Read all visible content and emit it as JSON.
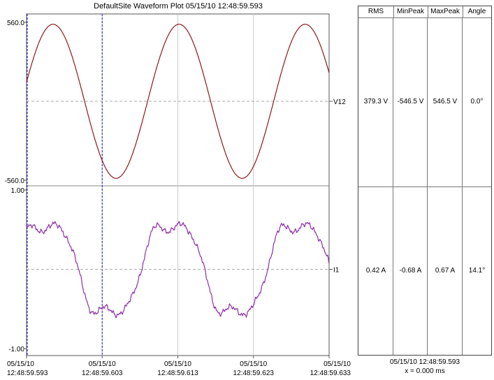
{
  "title": "DefaultSite  Waveform Plot  05/15/10  12:48:59.593",
  "chart_data": [
    {
      "type": "line",
      "series": [
        {
          "name": "V12",
          "amplitude": 546.5,
          "rms": 379.3,
          "frequency_hz": 60,
          "phase_deg": 0.0
        }
      ],
      "x": {
        "unit": "ms",
        "range": [
          0,
          40
        ]
      },
      "ylim": [
        -560.0,
        560.0
      ],
      "y_tick_labels": [
        "560.0",
        "-560.0"
      ],
      "color": "#8b1a1a"
    },
    {
      "type": "line",
      "series": [
        {
          "name": "I1",
          "min_peak": -0.68,
          "max_peak": 0.67,
          "rms": 0.42,
          "frequency_hz": 60,
          "phase_deg": 14.1
        }
      ],
      "x": {
        "unit": "ms",
        "range": [
          0,
          40
        ]
      },
      "ylim": [
        -1.0,
        1.0
      ],
      "y_tick_labels": [
        "1.00",
        "-1.00"
      ],
      "color": "#8e2fa8"
    }
  ],
  "x_ticks": [
    {
      "date": "05/15/10",
      "time": "12:48:59.593"
    },
    {
      "date": "05/15/10",
      "time": "12:48:59.603"
    },
    {
      "date": "05/15/10",
      "time": "12:48:59.613"
    },
    {
      "date": "05/15/10",
      "time": "12:48:59.623"
    },
    {
      "date": "05/15/10",
      "time": "12:48:59.633"
    }
  ],
  "table": {
    "headers": [
      "RMS",
      "MinPeak",
      "MaxPeak",
      "Angle"
    ],
    "rows": [
      [
        "379.3 V",
        "-546.5 V",
        "546.5 V",
        "0.0°"
      ],
      [
        "0.42 A",
        "-0.68 A",
        "0.67 A",
        "14.1°"
      ]
    ]
  },
  "footer": {
    "timestamp": "05/15/10  12:48:59.593",
    "cursor": "x = 0.000 ms"
  }
}
